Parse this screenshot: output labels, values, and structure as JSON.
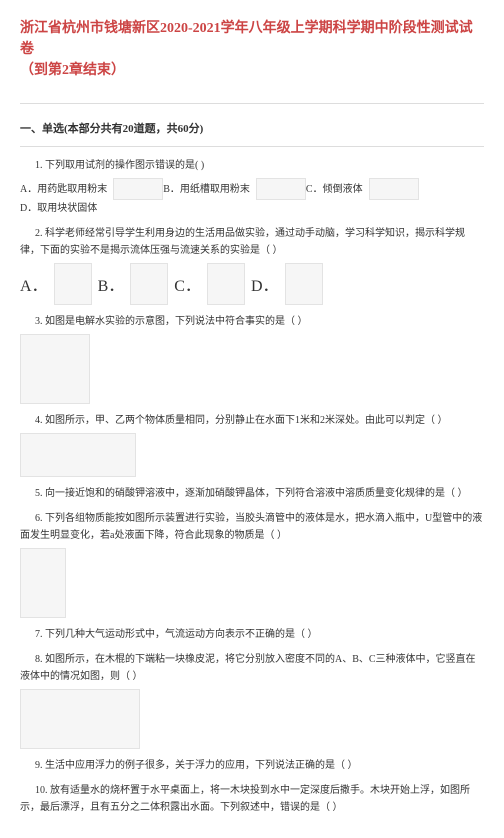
{
  "title_line1": "浙江省杭州市钱塘新区2020-2021学年八年级上学期科学期中阶段性测试试卷",
  "title_line2": "（到第2章结束）",
  "section1_title": "一、单选(本部分共有20道题，共60分)",
  "q1": "1. 下列取用试剂的操作图示错误的是(   )",
  "q1A": "A．用药匙取用粉末",
  "q1B": "B．用纸槽取用粉末",
  "q1C": "C．倾倒液体",
  "q1D": "D．取用块状固体",
  "q2": "2. 科学老师经常引导学生利用身边的生活用品做实验，通过动手动脑，学习科学知识，揭示科学规律，下面的实验不是揭示流体压强与流速关系的实验是（  ）",
  "q2A": "A．",
  "q2B": "B．",
  "q2C": "C．",
  "q2D": "D．",
  "q3": "3. 如图是电解水实验的示意图，下列说法中符合事实的是（  ）",
  "q4": "4. 如图所示，甲、乙两个物体质量相同，分别静止在水面下1米和2米深处。由此可以判定（  ）",
  "q5": "5. 向一接近饱和的硝酸钾溶液中，逐渐加硝酸钾晶体，下列符合溶液中溶质质量变化规律的是（  ）",
  "q6": "6. 下列各组物质能按如图所示装置进行实验，当胶头滴管中的液体是水，把水滴入瓶中，U型管中的液面发生明显变化，若a处液面下降，符合此现象的物质是（  ）",
  "q7": "7. 下列几种大气运动形式中，气流运动方向表示不正确的是（  ）",
  "q8": "8. 如图所示，在木棍的下端粘一块橡皮泥，将它分别放入密度不同的A、B、C三种液体中，它竖直在液体中的情况如图，则（  ）",
  "q9": "9. 生活中应用浮力的例子很多，关于浮力的应用，下列说法正确的是（  ）",
  "q10": "10. 放有适量水的烧杯置于水平桌面上，将一木块投到水中一定深度后撒手。木块开始上浮，如图所示，最后漂浮，且有五分之二体积露出水面。下列叙述中，错误的是（  ）"
}
